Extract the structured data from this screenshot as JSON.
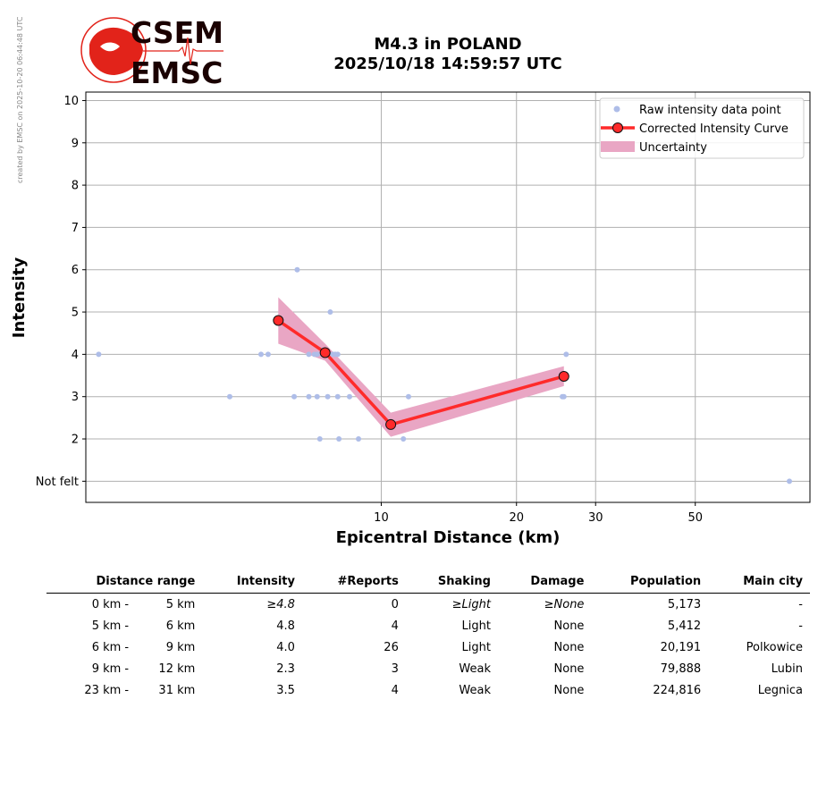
{
  "side_note": "created by EMSC on 2025-10-20 06:44:48 UTC",
  "logo": {
    "line1": "CSEM",
    "line2": "EMSC",
    "color": "#e2231a"
  },
  "chart_data": {
    "type": "scatter",
    "title": "M4.3 in POLAND",
    "subtitle": "2025/10/18 14:59:57 UTC",
    "xlabel": "Epicentral Distance (km)",
    "ylabel": "Intensity",
    "x_scale": "log",
    "xlim": [
      2.2,
      90
    ],
    "ylim": [
      0.5,
      10.2
    ],
    "x_ticks": [
      10,
      20,
      30,
      50
    ],
    "y_ticks": [
      {
        "v": 1,
        "label": "Not felt"
      },
      {
        "v": 2,
        "label": "2"
      },
      {
        "v": 3,
        "label": "3"
      },
      {
        "v": 4,
        "label": "4"
      },
      {
        "v": 5,
        "label": "5"
      },
      {
        "v": 6,
        "label": "6"
      },
      {
        "v": 7,
        "label": "7"
      },
      {
        "v": 8,
        "label": "8"
      },
      {
        "v": 9,
        "label": "9"
      },
      {
        "v": 10,
        "label": "10"
      }
    ],
    "grid": true,
    "legend_position": "top-right",
    "legend": [
      {
        "key": "raw",
        "label": "Raw intensity data point"
      },
      {
        "key": "curve",
        "label": "Corrected Intensity Curve"
      },
      {
        "key": "unc",
        "label": "Uncertainty"
      }
    ],
    "colors": {
      "raw": "#aebde8",
      "curve": "#ff2a2a",
      "marker_edge": "#111111",
      "uncertainty": "#e9a6c4",
      "grid": "#b0b0b0"
    },
    "raw_points": [
      {
        "x": 2.35,
        "y": 4
      },
      {
        "x": 4.6,
        "y": 3
      },
      {
        "x": 5.4,
        "y": 4
      },
      {
        "x": 5.6,
        "y": 4
      },
      {
        "x": 6.5,
        "y": 6
      },
      {
        "x": 6.4,
        "y": 3
      },
      {
        "x": 6.9,
        "y": 3
      },
      {
        "x": 6.9,
        "y": 4
      },
      {
        "x": 7.1,
        "y": 4
      },
      {
        "x": 7.2,
        "y": 4
      },
      {
        "x": 7.2,
        "y": 3
      },
      {
        "x": 7.3,
        "y": 2
      },
      {
        "x": 7.4,
        "y": 4
      },
      {
        "x": 7.6,
        "y": 3
      },
      {
        "x": 7.7,
        "y": 5
      },
      {
        "x": 7.8,
        "y": 4
      },
      {
        "x": 7.9,
        "y": 4
      },
      {
        "x": 8.0,
        "y": 3
      },
      {
        "x": 8.0,
        "y": 4
      },
      {
        "x": 8.05,
        "y": 2
      },
      {
        "x": 8.5,
        "y": 3
      },
      {
        "x": 8.9,
        "y": 2
      },
      {
        "x": 11.2,
        "y": 2
      },
      {
        "x": 11.5,
        "y": 3
      },
      {
        "x": 25.3,
        "y": 3
      },
      {
        "x": 25.5,
        "y": 3
      },
      {
        "x": 25.8,
        "y": 4
      },
      {
        "x": 81,
        "y": 1
      }
    ],
    "curve_points": [
      {
        "x": 5.9,
        "y": 4.8
      },
      {
        "x": 7.5,
        "y": 4.04
      },
      {
        "x": 10.5,
        "y": 2.34
      },
      {
        "x": 25.5,
        "y": 3.48
      }
    ],
    "uncertainty_band": [
      {
        "x": 5.9,
        "lo": 4.25,
        "hi": 5.35
      },
      {
        "x": 7.5,
        "lo": 3.85,
        "hi": 4.25
      },
      {
        "x": 10.5,
        "lo": 2.05,
        "hi": 2.62
      },
      {
        "x": 25.5,
        "lo": 3.25,
        "hi": 3.72
      }
    ]
  },
  "table": {
    "headers": [
      "Distance range",
      "Intensity",
      "#Reports",
      "Shaking",
      "Damage",
      "Population",
      "Main city"
    ],
    "rows": [
      {
        "from": "0 km -",
        "to": "5 km",
        "intensity": "≥4.8",
        "reports": "0",
        "shaking": "≥Light",
        "damage": "≥None",
        "population": "5,173",
        "city": "-",
        "italic": true
      },
      {
        "from": "5 km -",
        "to": "6 km",
        "intensity": "4.8",
        "reports": "4",
        "shaking": "Light",
        "damage": "None",
        "population": "5,412",
        "city": "-",
        "italic": false
      },
      {
        "from": "6 km -",
        "to": "9 km",
        "intensity": "4.0",
        "reports": "26",
        "shaking": "Light",
        "damage": "None",
        "population": "20,191",
        "city": "Polkowice",
        "italic": false
      },
      {
        "from": "9 km -",
        "to": "12 km",
        "intensity": "2.3",
        "reports": "3",
        "shaking": "Weak",
        "damage": "None",
        "population": "79,888",
        "city": "Lubin",
        "italic": false
      },
      {
        "from": "23 km -",
        "to": "31 km",
        "intensity": "3.5",
        "reports": "4",
        "shaking": "Weak",
        "damage": "None",
        "population": "224,816",
        "city": "Legnica",
        "italic": false
      }
    ]
  }
}
